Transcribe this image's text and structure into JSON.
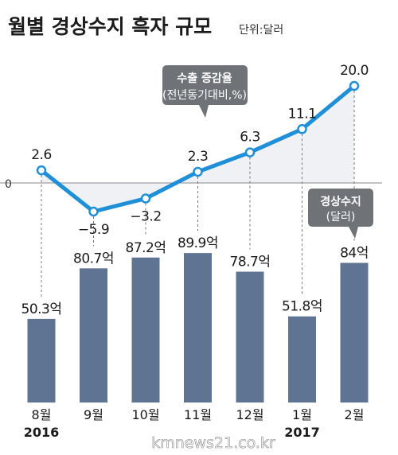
{
  "title": "월별 경상수지 흑자 규모",
  "unit": "단위:달러",
  "zero_label": "0",
  "watermark": "kmnews21.co.kr",
  "callout_line": {
    "line1": "수출 증감율",
    "line2": "(전년동기대비,%)"
  },
  "callout_bar": {
    "line1": "경상수지",
    "line2": "(달러)"
  },
  "colors": {
    "bar": "#5f7493",
    "line": "#1f8fd8",
    "area": "#f0f1f4",
    "callout": "#6f7277"
  },
  "chart_data": {
    "type": "bar+line",
    "categories": [
      "8월",
      "9월",
      "10월",
      "11월",
      "12월",
      "1월",
      "2월"
    ],
    "year_labels": [
      {
        "index": 0,
        "text": "2016"
      },
      {
        "index": 5,
        "text": "2017"
      }
    ],
    "bar_series": {
      "name": "경상수지",
      "values": [
        50.3,
        80.7,
        87.2,
        89.9,
        78.7,
        51.8,
        84
      ],
      "labels": [
        "50.3억",
        "80.7억",
        "87.2억",
        "89.9억",
        "78.7억",
        "51.8억",
        "84억"
      ]
    },
    "line_series": {
      "name": "수출 증감율",
      "values": [
        2.6,
        -5.9,
        -3.2,
        2.3,
        6.3,
        11.1,
        20.0
      ],
      "labels": [
        "2.6",
        "−5.9",
        "−3.2",
        "2.3",
        "6.3",
        "11.1",
        "20.0"
      ]
    },
    "line_ylim": [
      -5.9,
      20.0
    ],
    "grid": false
  }
}
